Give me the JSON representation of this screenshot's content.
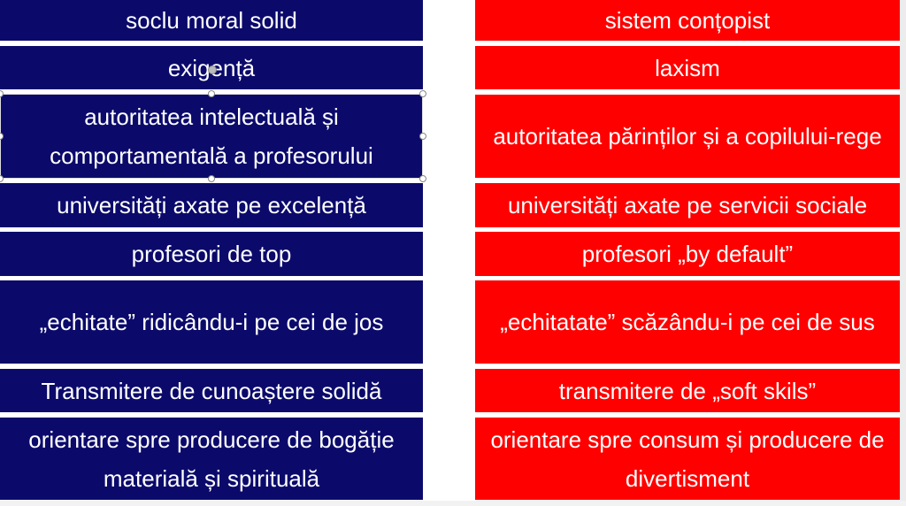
{
  "colors": {
    "left_box": "#0b0a6b",
    "right_box": "#fe0000",
    "text": "#ffffff"
  },
  "left": [
    "soclu moral solid",
    "exigență",
    "autoritatea intelectuală și comportamentală a profesorului",
    "universități axate pe excelență",
    "profesori de top",
    "„echitate” ridicându-i pe cei de jos",
    "Transmitere de cunoaștere solidă",
    "orientare spre producere de bogăție materială și spirituală"
  ],
  "right": [
    "sistem conțopist",
    "laxism",
    "autoritatea părinților și a copilului-rege",
    "universități axate pe servicii sociale",
    "profesori „by default”",
    "„echitatate” scăzându-i pe cei de sus",
    "transmitere de „soft skils”",
    "orientare spre consum și producere de divertisment"
  ]
}
